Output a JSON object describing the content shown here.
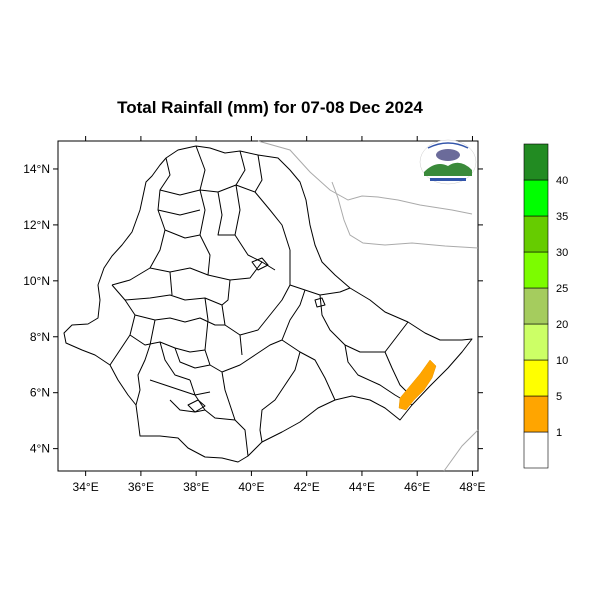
{
  "title": "Total Rainfall (mm) for 07-08 Dec 2024",
  "map": {
    "lon_range": [
      33,
      48.2
    ],
    "lat_range": [
      3.2,
      15
    ],
    "x_ticks": [
      {
        "value": 34,
        "label": "34°E"
      },
      {
        "value": 36,
        "label": "36°E"
      },
      {
        "value": 38,
        "label": "38°E"
      },
      {
        "value": 40,
        "label": "40°E"
      },
      {
        "value": 42,
        "label": "42°E"
      },
      {
        "value": 44,
        "label": "44°E"
      },
      {
        "value": 46,
        "label": "46°E"
      },
      {
        "value": 48,
        "label": "48°E"
      }
    ],
    "y_ticks": [
      {
        "value": 4,
        "label": "4°N"
      },
      {
        "value": 6,
        "label": "6°N"
      },
      {
        "value": 8,
        "label": "8°N"
      },
      {
        "value": 10,
        "label": "10°N"
      },
      {
        "value": 12,
        "label": "12°N"
      },
      {
        "value": 14,
        "label": "14°N"
      }
    ],
    "rain_area": {
      "class": "1-5 mm",
      "color": "#ffa500",
      "region": "south-east Somali region near 45.5°E-46.5°E, 5.5°N-7.2°N"
    }
  },
  "legend": {
    "colors": [
      "#ffffff",
      "#ffa500",
      "#ffff00",
      "#ccff66",
      "#a5cc5e",
      "#7cfc00",
      "#66cc00",
      "#00ff00",
      "#228b22"
    ],
    "labels": [
      "1",
      "5",
      "10",
      "20",
      "25",
      "30",
      "35",
      "40"
    ]
  }
}
